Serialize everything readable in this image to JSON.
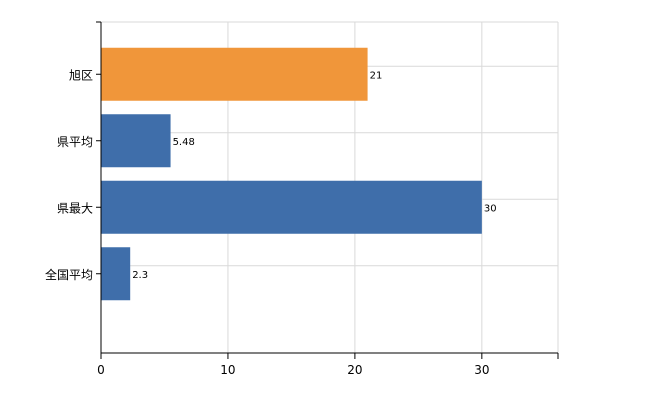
{
  "chart_data": {
    "type": "bar",
    "orientation": "horizontal",
    "categories": [
      "旭区",
      "県平均",
      "県最大",
      "全国平均"
    ],
    "values": [
      21,
      5.48,
      30,
      2.3
    ],
    "data_labels": [
      "21",
      "5.48",
      "30",
      "2.3"
    ],
    "bar_colors": [
      "#f0963a",
      "#3f6eaa",
      "#3f6eaa",
      "#3f6eaa"
    ],
    "xlim": [
      0,
      36
    ],
    "x_ticks": [
      0,
      10,
      20,
      30
    ],
    "grid": true,
    "legend": "none"
  }
}
